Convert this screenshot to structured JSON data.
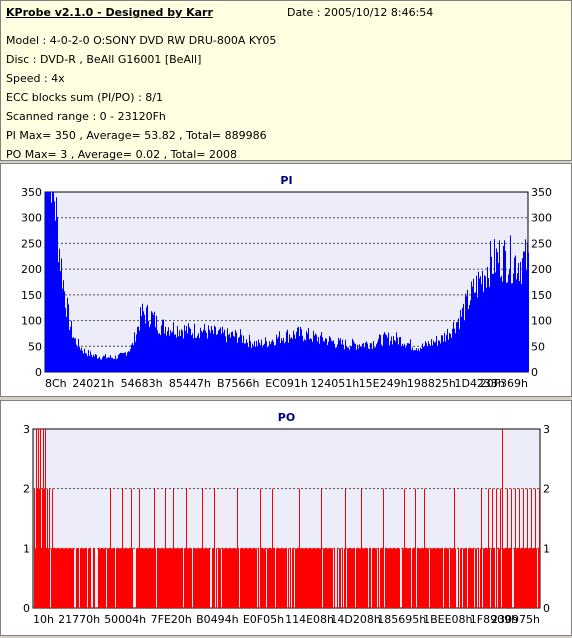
{
  "header": {
    "title": "KProbe v2.1.0 - Designed by Karr",
    "date": "Date : 2005/10/12 8:46:54",
    "lines": [
      "Model : 4-0-2-0 O:SONY    DVD RW DRU-800A  KY05",
      "Disc : DVD-R , BeAll G16001 [BeAll]",
      "Speed : 4x",
      "ECC blocks sum (PI/PO) : 8/1",
      "Scanned range : 0 - 23120Fh",
      "PI Max= 350 , Average= 53.82 , Total= 889986",
      "PO Max= 3 , Average= 0.02 , Total= 2008"
    ]
  },
  "chart_data": [
    {
      "type": "area",
      "title": "PI",
      "color": "#0000ff",
      "ylim": [
        0,
        350
      ],
      "yticks": [
        0,
        50,
        100,
        150,
        200,
        250,
        300,
        350
      ],
      "xtick_labels": [
        "8Ch",
        "24021h",
        "54683h",
        "85447h",
        "B7566h",
        "EC091h",
        "124051h",
        "15E249h",
        "198825h",
        "1D4233h",
        "20F369h"
      ],
      "grid": "horizontal-dashed",
      "x_range": [
        0,
        100
      ],
      "x": [
        0,
        0.5,
        1,
        1.5,
        2,
        2.5,
        3,
        3.5,
        4,
        5,
        6,
        7,
        8,
        9,
        10,
        12,
        14,
        16,
        18,
        20,
        22,
        23,
        24,
        26,
        28,
        30,
        32,
        34,
        36,
        38,
        40,
        42,
        44,
        46,
        48,
        50,
        52,
        54,
        56,
        58,
        60,
        62,
        64,
        66,
        68,
        70,
        72,
        74,
        76,
        78,
        80,
        82,
        84,
        86,
        88,
        90,
        92,
        94,
        96,
        98,
        100
      ],
      "y": [
        340,
        345,
        330,
        300,
        260,
        220,
        180,
        150,
        120,
        75,
        50,
        40,
        32,
        28,
        25,
        23,
        22,
        25,
        40,
        90,
        85,
        75,
        70,
        68,
        66,
        62,
        65,
        60,
        58,
        55,
        55,
        48,
        42,
        46,
        52,
        56,
        58,
        57,
        52,
        50,
        45,
        42,
        42,
        43,
        45,
        50,
        52,
        48,
        40,
        38,
        45,
        50,
        65,
        85,
        115,
        140,
        165,
        175,
        172,
        168,
        170
      ]
    },
    {
      "type": "bar",
      "title": "PO",
      "color": "#ff0000",
      "ylim": [
        0,
        3
      ],
      "yticks": [
        0,
        1,
        2,
        3
      ],
      "xtick_labels": [
        "10h",
        "21770h",
        "50004h",
        "7FE20h",
        "B0494h",
        "E0F05h",
        "114E08h",
        "14D208h",
        "185695h",
        "1BEE08h",
        "1F8909h",
        "230975h"
      ],
      "grid": "horizontal-dashed",
      "x_range": [
        0,
        100
      ],
      "level_3": [
        0.5,
        1.0,
        1.4,
        2.0,
        2.4,
        92.6
      ],
      "level_2": [
        0.2,
        0.7,
        1.2,
        1.7,
        2.2,
        2.7,
        3.2,
        3.7,
        15.2,
        17.5,
        19.3,
        21.0,
        23.8,
        26.1,
        27.6,
        30.2,
        33.4,
        35.7,
        40.3,
        44.8,
        47.1,
        52.4,
        56.8,
        61.5,
        64.7,
        69.0,
        73.2,
        75.4,
        77.1,
        83.0,
        88.3,
        89.7,
        90.5,
        91.3,
        92.1,
        93.4,
        94.2,
        95.0,
        95.8,
        96.6,
        97.4,
        98.2,
        99.0,
        99.8
      ],
      "level_1_density": 0.85
    }
  ]
}
